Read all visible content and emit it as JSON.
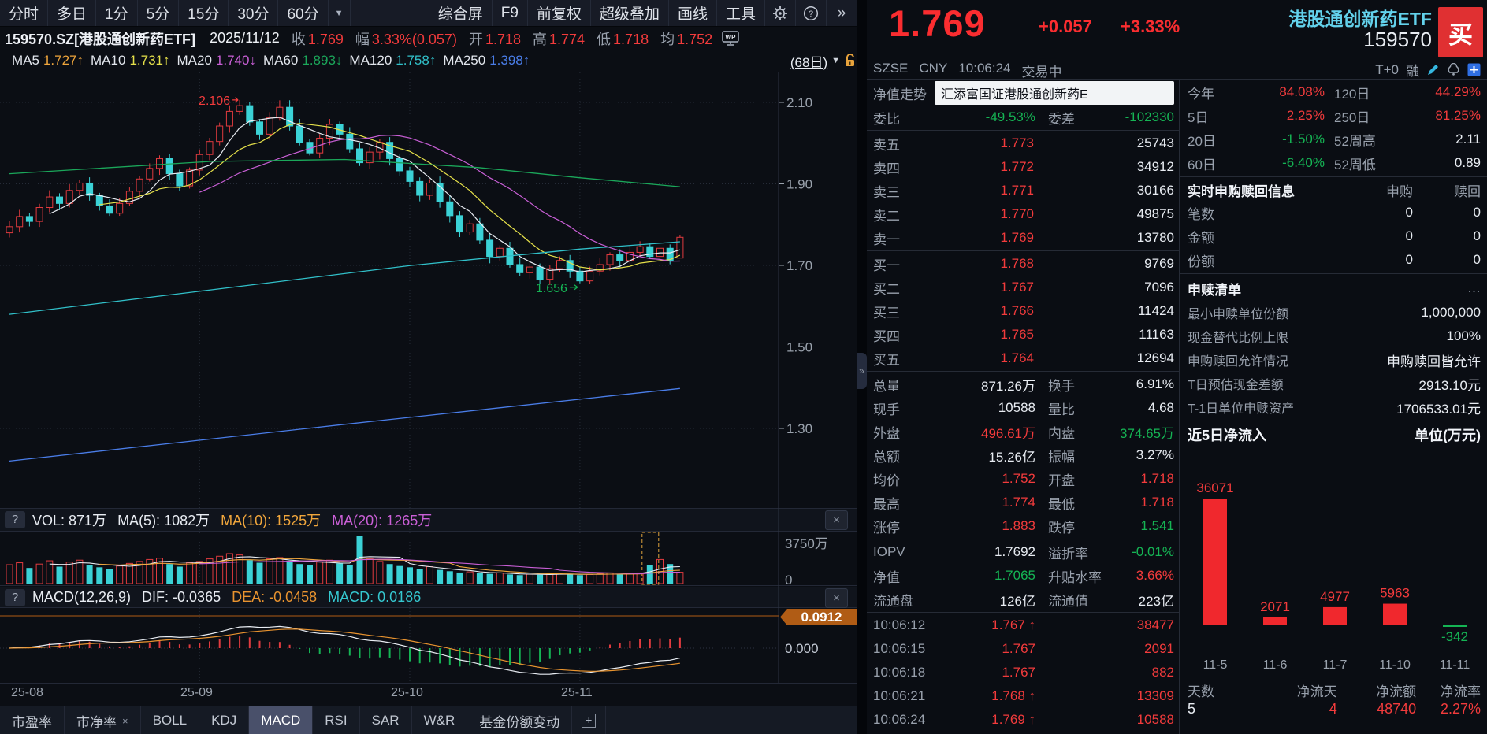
{
  "colors": {
    "up_red": "#e23b3f",
    "down_cyan": "#3bd2d6",
    "accent_red": "#f23b3c",
    "accent_green": "#15b454",
    "name_cyan": "#63d2ec",
    "ma5": "#e8ecf2",
    "ma10": "#e5e04a",
    "ma20": "#c95fd6",
    "ma60": "#1ba75a",
    "ma120": "#31c0c9",
    "ma250": "#4a7de8",
    "vol_ma10": "#f0a63c",
    "tag_orange": "#b05c15"
  },
  "toolbar": {
    "left": [
      "分时",
      "多日",
      "1分",
      "5分",
      "15分",
      "30分",
      "60分"
    ],
    "dropdown": "▾",
    "right": [
      "综合屏",
      "F9",
      "前复权",
      "超级叠加",
      "画线",
      "工具"
    ],
    "gear_label": "设置",
    "help_label": "?",
    "more_label": "»"
  },
  "infobar": {
    "code": "159570.SZ[港股通创新药ETF]",
    "date": "2025/11/12",
    "fields": [
      {
        "k": "收",
        "v": "1.769"
      },
      {
        "k": "幅",
        "v": "3.33%(0.057)"
      },
      {
        "k": "开",
        "v": "1.718"
      },
      {
        "k": "高",
        "v": "1.774"
      },
      {
        "k": "低",
        "v": "1.718"
      },
      {
        "k": "均",
        "v": "1.752"
      }
    ]
  },
  "ma_bar": {
    "items": [
      {
        "label": "MA5",
        "value": "1.727",
        "dir": "↑",
        "color": "#f0a63c"
      },
      {
        "label": "MA10",
        "value": "1.731",
        "dir": "↑",
        "color": "#e5e04a"
      },
      {
        "label": "MA20",
        "value": "1.740",
        "dir": "↓",
        "color": "#c95fd6"
      },
      {
        "label": "MA60",
        "value": "1.893",
        "dir": "↓",
        "color": "#1ba75a"
      },
      {
        "label": "MA120",
        "value": "1.758",
        "dir": "↑",
        "color": "#31c0c9"
      },
      {
        "label": "MA250",
        "value": "1.398",
        "dir": "↑",
        "color": "#4a7de8"
      }
    ],
    "period": "(68日)"
  },
  "chart_data": [
    {
      "type": "candlestick",
      "period_label": "(68日)",
      "y_ticks": [
        "2.10",
        "1.90",
        "1.70",
        "1.50",
        "1.30"
      ],
      "x_labels": [
        "25-08",
        "25-09",
        "25-10",
        "25-11"
      ],
      "annotation_high": "2.106",
      "annotation_low": "1.656",
      "peak_index": 23,
      "peak_high": 2.106,
      "trough_index": 57,
      "trough_low": 1.656,
      "month_start_indices": [
        19,
        40,
        57
      ],
      "first_open": 1.78,
      "last_candle": {
        "open": 1.718,
        "high": 1.774,
        "low": 1.718,
        "close": 1.769
      },
      "closes": [
        1.795,
        1.82,
        1.808,
        1.842,
        1.868,
        1.852,
        1.884,
        1.902,
        1.872,
        1.846,
        1.828,
        1.852,
        1.882,
        1.912,
        1.938,
        1.962,
        1.925,
        1.895,
        1.934,
        1.972,
        2.004,
        2.042,
        2.078,
        2.092,
        2.052,
        2.022,
        2.062,
        2.088,
        2.042,
        2.002,
        1.976,
        2.012,
        2.046,
        2.022,
        1.986,
        1.952,
        1.978,
        2.002,
        1.962,
        1.932,
        1.906,
        1.872,
        1.902,
        1.856,
        1.822,
        1.782,
        1.802,
        1.762,
        1.722,
        1.742,
        1.702,
        1.682,
        1.696,
        1.666,
        1.692,
        1.712,
        1.686,
        1.662,
        1.686,
        1.702,
        1.726,
        1.712,
        1.732,
        1.746,
        1.722,
        1.742,
        1.712,
        1.769
      ],
      "volumes": [
        1450,
        1600,
        1200,
        1500,
        1750,
        1300,
        1650,
        1800,
        1400,
        1250,
        1100,
        1350,
        1550,
        1700,
        1850,
        1950,
        1500,
        1300,
        1600,
        1700,
        1900,
        2100,
        2300,
        2200,
        1800,
        1600,
        1900,
        2000,
        1750,
        1500,
        1400,
        1650,
        1800,
        1550,
        1450,
        3650,
        1900,
        1700,
        1500,
        1350,
        1250,
        1100,
        1300,
        1050,
        950,
        850,
        900,
        800,
        750,
        820,
        700,
        650,
        720,
        680,
        750,
        800,
        700,
        650,
        700,
        760,
        820,
        700,
        760,
        820,
        1450,
        1850,
        1500,
        871
      ],
      "volume_axis_max": 3750,
      "ma_overlays": {
        "ma60": [
          [
            0,
            1.925
          ],
          [
            0.3,
            1.955
          ],
          [
            0.5,
            1.96
          ],
          [
            0.7,
            1.94
          ],
          [
            0.85,
            1.915
          ],
          [
            1,
            1.893
          ]
        ],
        "ma120": [
          [
            0,
            1.58
          ],
          [
            0.3,
            1.64
          ],
          [
            0.6,
            1.7
          ],
          [
            0.85,
            1.74
          ],
          [
            1,
            1.758
          ]
        ],
        "ma250": [
          [
            0,
            1.22
          ],
          [
            0.5,
            1.31
          ],
          [
            1,
            1.398
          ]
        ]
      }
    },
    {
      "type": "bar",
      "title": "近5日净流入",
      "unit_label": "单位(万元)",
      "categories": [
        "11-5",
        "11-6",
        "11-7",
        "11-10",
        "11-11"
      ],
      "values": [
        36071,
        2071,
        4977,
        5963,
        -342
      ]
    }
  ],
  "vol_pane": {
    "legend_title": "VOL: 871万",
    "ma5": "MA(5): 1082万",
    "ma10": "MA(10): 1525万",
    "ma20": "MA(20): 1265万",
    "axis_max": "3750万",
    "axis_min": "0",
    "close_label": "×",
    "help_label": "?"
  },
  "macd_pane": {
    "legend_title": "MACD(12,26,9)",
    "dif": "DIF: -0.0365",
    "dea": "DEA: -0.0458",
    "macd": "MACD: 0.0186",
    "tag": "0.0912",
    "zero_label": "0.000",
    "close_label": "×",
    "help_label": "?"
  },
  "tabs": {
    "items": [
      "市盈率",
      "市净率",
      "BOLL",
      "KDJ",
      "MACD",
      "RSI",
      "SAR",
      "W&R",
      "基金份额变动"
    ],
    "active": "MACD",
    "closable": "市净率",
    "close_label": "×",
    "add_label": "+"
  },
  "quote": {
    "price": "1.769",
    "change": "+0.057",
    "pct": "+3.33%",
    "name": "港股通创新药ETF",
    "code": "159570",
    "buy": "买",
    "exchange": "SZSE",
    "currency": "CNY",
    "time": "10:06:24",
    "status": "交易中",
    "tplus": "T+0",
    "rong": "融"
  },
  "nav": {
    "label": "净值走势",
    "fund": "汇添富国证港股通创新药E"
  },
  "weibi": {
    "l1": "委比",
    "v1": "-49.53%",
    "l2": "委差",
    "v2": "-102330"
  },
  "asks": [
    {
      "label": "卖五",
      "price": "1.773",
      "qty": "25743"
    },
    {
      "label": "卖四",
      "price": "1.772",
      "qty": "34912"
    },
    {
      "label": "卖三",
      "price": "1.771",
      "qty": "30166"
    },
    {
      "label": "卖二",
      "price": "1.770",
      "qty": "49875"
    },
    {
      "label": "卖一",
      "price": "1.769",
      "qty": "13780"
    }
  ],
  "bids": [
    {
      "label": "买一",
      "price": "1.768",
      "qty": "9769"
    },
    {
      "label": "买二",
      "price": "1.767",
      "qty": "7096"
    },
    {
      "label": "买三",
      "price": "1.766",
      "qty": "11424"
    },
    {
      "label": "买四",
      "price": "1.765",
      "qty": "11163"
    },
    {
      "label": "买五",
      "price": "1.764",
      "qty": "12694"
    }
  ],
  "stats": [
    {
      "l1": "总量",
      "v1": "871.26万",
      "c1": "w",
      "l2": "换手",
      "v2": "6.91%",
      "c2": "w"
    },
    {
      "l1": "现手",
      "v1": "10588",
      "c1": "w",
      "l2": "量比",
      "v2": "4.68",
      "c2": "w"
    },
    {
      "l1": "外盘",
      "v1": "496.61万",
      "c1": "r",
      "l2": "内盘",
      "v2": "374.65万",
      "c2": "g"
    },
    {
      "l1": "总额",
      "v1": "15.26亿",
      "c1": "w",
      "l2": "振幅",
      "v2": "3.27%",
      "c2": "w"
    },
    {
      "l1": "均价",
      "v1": "1.752",
      "c1": "r",
      "l2": "开盘",
      "v2": "1.718",
      "c2": "r"
    },
    {
      "l1": "最高",
      "v1": "1.774",
      "c1": "r",
      "l2": "最低",
      "v2": "1.718",
      "c2": "r"
    },
    {
      "l1": "涨停",
      "v1": "1.883",
      "c1": "r",
      "l2": "跌停",
      "v2": "1.541",
      "c2": "g"
    }
  ],
  "stats2": [
    {
      "l1": "IOPV",
      "v1": "1.7692",
      "c1": "w",
      "l2": "溢折率",
      "v2": "-0.01%",
      "c2": "g"
    },
    {
      "l1": "净值",
      "v1": "1.7065",
      "c1": "g",
      "l2": "升贴水率",
      "v2": "3.66%",
      "c2": "r"
    },
    {
      "l1": "流通盘",
      "v1": "126亿",
      "c1": "w",
      "l2": "流通值",
      "v2": "223亿",
      "c2": "w"
    }
  ],
  "ticks": [
    {
      "time": "10:06:12",
      "price": "1.767",
      "arrow": "↑",
      "qty": "38477"
    },
    {
      "time": "10:06:15",
      "price": "1.767",
      "arrow": "",
      "qty": "2091"
    },
    {
      "time": "10:06:18",
      "price": "1.767",
      "arrow": "",
      "qty": "882"
    },
    {
      "time": "10:06:21",
      "price": "1.768",
      "arrow": "↑",
      "qty": "13309"
    },
    {
      "time": "10:06:24",
      "price": "1.769",
      "arrow": "↑",
      "qty": "10588"
    }
  ],
  "perf": [
    {
      "l1": "今年",
      "v1": "84.08%",
      "c1": "r",
      "l2": "120日",
      "v2": "44.29%",
      "c2": "r"
    },
    {
      "l1": "5日",
      "v1": "2.25%",
      "c1": "r",
      "l2": "250日",
      "v2": "81.25%",
      "c2": "r"
    },
    {
      "l1": "20日",
      "v1": "-1.50%",
      "c1": "g",
      "l2": "52周高",
      "v2": "2.11",
      "c2": "w"
    },
    {
      "l1": "60日",
      "v1": "-6.40%",
      "c1": "g",
      "l2": "52周低",
      "v2": "0.89",
      "c2": "w"
    }
  ],
  "realtime": {
    "title": "实时申购赎回信息",
    "col1": "申购",
    "col2": "赎回",
    "rows": [
      {
        "label": "笔数",
        "v1": "0",
        "v2": "0"
      },
      {
        "label": "金额",
        "v1": "0",
        "v2": "0"
      },
      {
        "label": "份额",
        "v1": "0",
        "v2": "0"
      }
    ]
  },
  "shenshu": {
    "title": "申赎清单",
    "more": "…",
    "rows": [
      {
        "label": "最小申赎单位份额",
        "value": "1,000,000"
      },
      {
        "label": "现金替代比例上限",
        "value": "100%"
      },
      {
        "label": "申购赎回允许情况",
        "value": "申购赎回皆允许"
      },
      {
        "label": "T日预估现金差额",
        "value": "2913.10元"
      },
      {
        "label": "T-1日单位申赎资产",
        "value": "1706533.01元"
      }
    ]
  },
  "flow_footer": [
    {
      "label": "天数",
      "value": "5",
      "color": "w"
    },
    {
      "label": "净流天",
      "value": "4",
      "color": "r"
    },
    {
      "label": "净流额",
      "value": "48740",
      "color": "r"
    },
    {
      "label": "净流率",
      "value": "2.27%",
      "color": "r"
    }
  ]
}
